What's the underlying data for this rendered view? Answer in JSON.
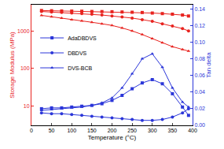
{
  "chart_data": {
    "type": "line",
    "x_label": "Temperature (°C)",
    "y_label": "Storage Modulus (MPa)",
    "y2_label": "Tan delta",
    "log": "y",
    "grid": false,
    "legend": "upper left",
    "xlim": [
      0,
      400
    ],
    "xticks": [
      0,
      50,
      100,
      150,
      200,
      250,
      300,
      350,
      400
    ],
    "ylim": [
      3,
      5000
    ],
    "yticks": [
      10,
      100,
      1000
    ],
    "y2lim": [
      0,
      0.145
    ],
    "y2ticks": [
      {
        "value": 0,
        "label": "0.00"
      },
      {
        "value": 0.02,
        "label": "0.02"
      },
      {
        "value": 0.04,
        "label": "0.04"
      },
      {
        "value": 0.06,
        "label": "0.06"
      },
      {
        "value": 0.08,
        "label": "0.08"
      },
      {
        "value": 0.1,
        "label": "0.10"
      },
      {
        "value": 0.12,
        "label": "0.12"
      },
      {
        "value": 0.14,
        "label": "0.14"
      }
    ],
    "x": [
      25,
      50,
      75,
      100,
      125,
      150,
      175,
      200,
      225,
      250,
      275,
      300,
      325,
      350,
      375,
      390
    ],
    "series": [
      {
        "name": "AdaDBDVS",
        "color": "#e8231f",
        "marker": "square",
        "axis": "y",
        "values": [
          3500,
          3450,
          3400,
          3380,
          3350,
          3300,
          3280,
          3250,
          3200,
          3150,
          3100,
          3000,
          2900,
          2800,
          2650,
          2500
        ]
      },
      {
        "name": "DBDVS",
        "color": "#e8231f",
        "marker": "circle",
        "axis": "y",
        "values": [
          3300,
          3200,
          3100,
          3000,
          2900,
          2800,
          2650,
          2500,
          2350,
          2200,
          2000,
          1800,
          1550,
          1350,
          1150,
          1000
        ]
      },
      {
        "name": "DVS-BCB",
        "color": "#e8231f",
        "marker": "triangle-up",
        "axis": "y",
        "values": [
          2600,
          2400,
          2200,
          2000,
          1850,
          1700,
          1550,
          1400,
          1200,
          1000,
          800,
          620,
          480,
          380,
          320,
          290
        ]
      },
      {
        "name": "AdaDBDVS",
        "color": "#2b36d9",
        "marker": "square",
        "axis": "y2",
        "values": [
          0.02,
          0.021,
          0.021,
          0.022,
          0.023,
          0.024,
          0.026,
          0.03,
          0.036,
          0.044,
          0.051,
          0.055,
          0.05,
          0.038,
          0.022,
          0.012
        ]
      },
      {
        "name": "DBDVS",
        "color": "#2b36d9",
        "marker": "circle",
        "axis": "y2",
        "values": [
          0.015,
          0.014,
          0.014,
          0.013,
          0.012,
          0.011,
          0.01,
          0.009,
          0.008,
          0.007,
          0.006,
          0.006,
          0.007,
          0.01,
          0.015,
          0.02
        ]
      },
      {
        "name": "DVS-BCB",
        "color": "#2b36d9",
        "marker": "triangle-up",
        "axis": "y2",
        "values": [
          0.018,
          0.019,
          0.02,
          0.021,
          0.022,
          0.024,
          0.027,
          0.033,
          0.045,
          0.062,
          0.08,
          0.086,
          0.07,
          0.045,
          0.028,
          0.022
        ]
      }
    ]
  }
}
